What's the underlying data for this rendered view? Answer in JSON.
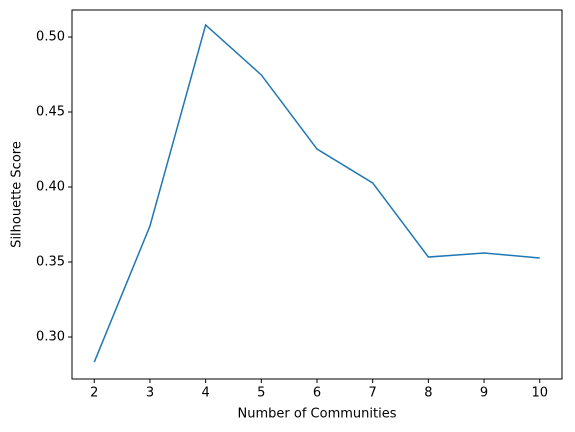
{
  "chart_data": {
    "type": "line",
    "x_label": "Number of Communities",
    "y_label": "Silhouette Score",
    "x": [
      2,
      3,
      4,
      5,
      6,
      7,
      8,
      9,
      10
    ],
    "series": [
      {
        "color": "#1f77b4",
        "values": [
          0.2833,
          0.374,
          0.508,
          0.4747,
          0.4253,
          0.4027,
          0.3533,
          0.356,
          0.3527
        ]
      }
    ],
    "xlim": [
      1.6,
      10.4
    ],
    "xticks": [
      2,
      3,
      4,
      5,
      6,
      7,
      8,
      9,
      10
    ],
    "ylim": [
      0.272,
      0.518
    ],
    "yticks": [
      {
        "value": 0.3,
        "label": "0.30"
      },
      0.35,
      {
        "value": 0.4,
        "label": "0.40"
      },
      0.45,
      {
        "value": 0.5,
        "label": "0.50"
      }
    ]
  }
}
